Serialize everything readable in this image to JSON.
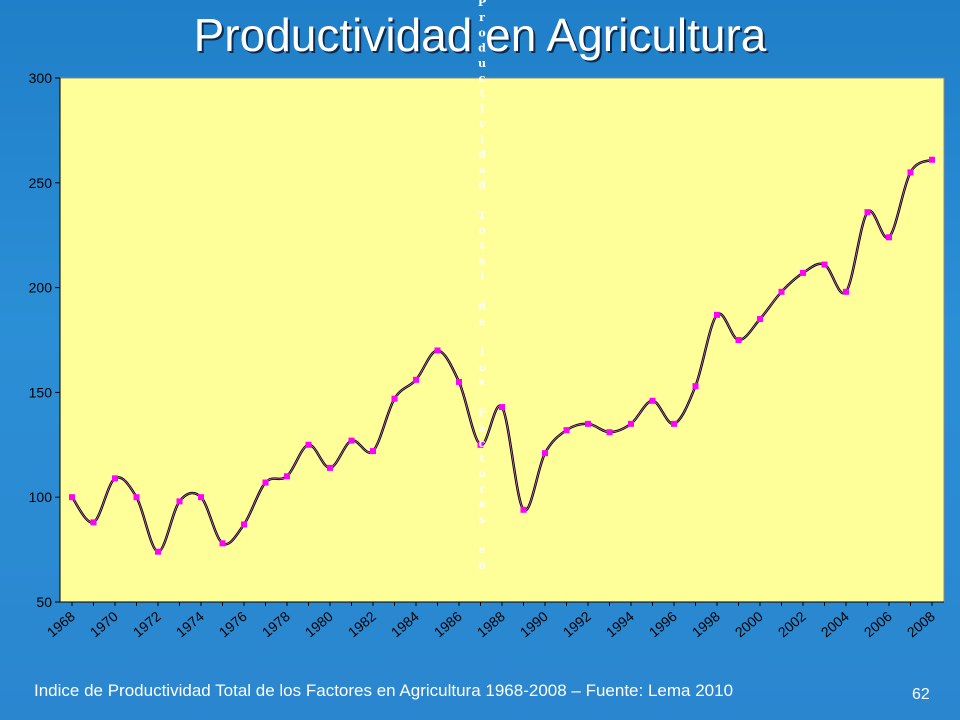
{
  "slide": {
    "title": "Productividad en Agricultura",
    "caption": "Indice de Productividad Total de los Factores en Agricultura 1968-2008 – Fuente: Lema 2010",
    "page_number": "62"
  },
  "colors": {
    "plot_background": "#ffff99",
    "line": "#000000",
    "marker": "#ff00ff",
    "slide_background": "#2a86cf"
  },
  "chart_data": {
    "type": "line",
    "title": "",
    "xlabel": "",
    "ylabel": "",
    "vertical_overlay_text": "Productividad Total de los Factores en",
    "x": [
      1968,
      1969,
      1970,
      1971,
      1972,
      1973,
      1974,
      1975,
      1976,
      1977,
      1978,
      1979,
      1980,
      1981,
      1982,
      1983,
      1984,
      1985,
      1986,
      1987,
      1988,
      1989,
      1990,
      1991,
      1992,
      1993,
      1994,
      1995,
      1996,
      1997,
      1998,
      1999,
      2000,
      2001,
      2002,
      2003,
      2004,
      2005,
      2006,
      2007,
      2008
    ],
    "x_tick_labels": [
      "1968",
      "1970",
      "1972",
      "1974",
      "1976",
      "1978",
      "1980",
      "1982",
      "1984",
      "1986",
      "1988",
      "1990",
      "1992",
      "1994",
      "1996",
      "1998",
      "2000",
      "2002",
      "2004",
      "2006",
      "2008"
    ],
    "xlim": [
      1968,
      2008
    ],
    "y_ticks": [
      50,
      100,
      150,
      200,
      250,
      300
    ],
    "ylim": [
      50,
      300
    ],
    "grid": false,
    "legend": "none",
    "series": [
      {
        "values": [
          100,
          88,
          109,
          100,
          74,
          98,
          100,
          78,
          87,
          107,
          110,
          125,
          114,
          127,
          122,
          147,
          156,
          170,
          155,
          125,
          143,
          94,
          121,
          132,
          135,
          131,
          135,
          146,
          135,
          153,
          187,
          175,
          185,
          198,
          207,
          211,
          198,
          236,
          224,
          255,
          261
        ]
      }
    ]
  }
}
